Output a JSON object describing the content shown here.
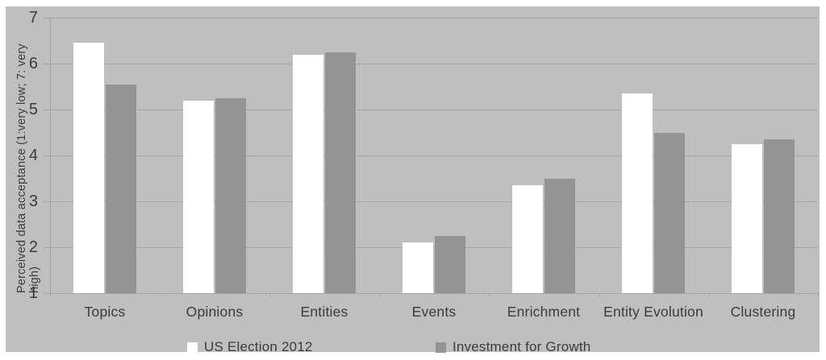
{
  "chart_data": {
    "type": "bar",
    "categories": [
      "Topics",
      "Opinions",
      "Entities",
      "Events",
      "Enrichment",
      "Entity Evolution",
      "Clustering"
    ],
    "series": [
      {
        "name": "US Election 2012",
        "color": "#ffffff",
        "values": [
          6.45,
          5.2,
          6.2,
          2.1,
          3.35,
          5.35,
          4.25
        ]
      },
      {
        "name": "Investment for Growth",
        "color": "#949494",
        "values": [
          5.55,
          5.25,
          6.25,
          2.25,
          3.5,
          4.5,
          4.35
        ]
      }
    ],
    "title": "",
    "xlabel": "",
    "ylabel": "Perceived data acceptance (1:very low; 7: very high)",
    "yticks": [
      1,
      2,
      3,
      4,
      5,
      6,
      7
    ],
    "ylim": [
      1,
      7
    ],
    "grid": true,
    "legend_position": "bottom"
  },
  "colors": {
    "panel_bg": "#bfbfbf",
    "gridline": "#a4a4a4",
    "axis": "#a4a4a4",
    "text": "#3b3b3b"
  }
}
